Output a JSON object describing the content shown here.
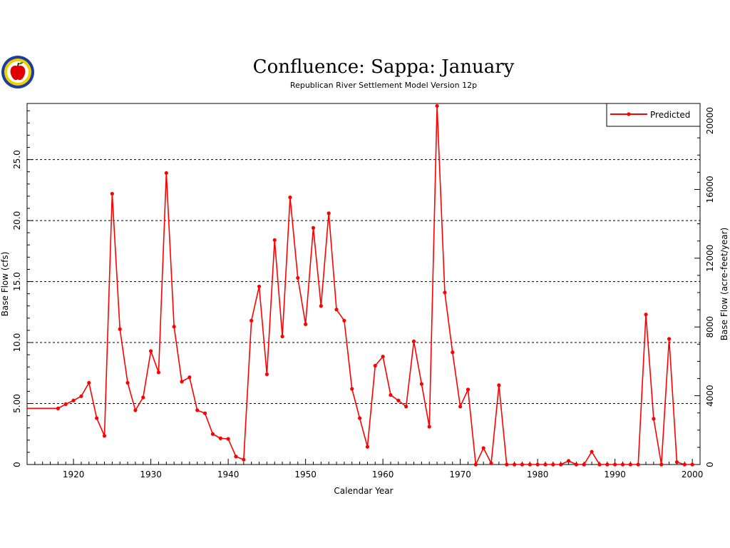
{
  "chart_data": {
    "type": "line",
    "title": "Confluence:  Sappa:  January",
    "subtitle": "Republican River Settlement Model Version 12p",
    "xlabel": "Calendar Year",
    "ylabel": "Base Flow (cfs)",
    "y2label": "Base Flow (acre-feet/year)",
    "xlim": [
      1914,
      2001
    ],
    "ylim": [
      0,
      29.6
    ],
    "y2lim": [
      0,
      21000
    ],
    "x_ticks": [
      1920,
      1930,
      1940,
      1950,
      1960,
      1970,
      1980,
      1990,
      2000
    ],
    "y_ticks": [
      0,
      5,
      10,
      15,
      20,
      25
    ],
    "y_tick_labels": [
      "0",
      "5.00",
      "10.0",
      "15.0",
      "20.0",
      "25.0"
    ],
    "y2_ticks": [
      0,
      4000,
      8000,
      12000,
      16000,
      20000
    ],
    "y2_tick_labels": [
      "0",
      "4000",
      "8000",
      "12000",
      "16000",
      "20000"
    ],
    "grid": "horizontal dashed",
    "legend_placement": "top-right",
    "series": [
      {
        "name": "Predicted",
        "color": "#ff0000",
        "start_x": 1914,
        "start_y": 4.6,
        "x": [
          1918,
          1919,
          1920,
          1921,
          1922,
          1923,
          1924,
          1925,
          1926,
          1927,
          1928,
          1929,
          1930,
          1931,
          1932,
          1933,
          1934,
          1935,
          1936,
          1937,
          1938,
          1939,
          1940,
          1941,
          1942,
          1943,
          1944,
          1945,
          1946,
          1947,
          1948,
          1949,
          1950,
          1951,
          1952,
          1953,
          1954,
          1955,
          1956,
          1957,
          1958,
          1959,
          1960,
          1961,
          1962,
          1963,
          1964,
          1965,
          1966,
          1967,
          1968,
          1969,
          1970,
          1971,
          1972,
          1973,
          1974,
          1975,
          1976,
          1977,
          1978,
          1979,
          1980,
          1981,
          1982,
          1983,
          1984,
          1985,
          1986,
          1987,
          1988,
          1989,
          1990,
          1991,
          1992,
          1993,
          1994,
          1995,
          1996,
          1997,
          1998,
          1999,
          2000
        ],
        "values": [
          4.6,
          4.95,
          5.25,
          5.6,
          6.7,
          3.8,
          2.35,
          22.2,
          11.1,
          6.7,
          4.45,
          5.5,
          9.3,
          7.55,
          23.9,
          11.3,
          6.8,
          7.15,
          4.45,
          4.2,
          2.5,
          2.15,
          2.1,
          0.65,
          0.4,
          11.8,
          14.6,
          7.4,
          18.4,
          10.5,
          21.9,
          15.3,
          11.5,
          19.4,
          13.0,
          20.6,
          12.7,
          11.8,
          6.2,
          3.8,
          1.45,
          8.1,
          8.85,
          5.7,
          5.25,
          4.75,
          10.1,
          6.6,
          3.1,
          29.4,
          14.1,
          9.2,
          4.75,
          6.15,
          0.0,
          1.35,
          0.1,
          6.5,
          0.0,
          0.0,
          0.0,
          0.0,
          0.0,
          0.0,
          0.0,
          0.0,
          0.3,
          0.0,
          0.0,
          1.05,
          0.0,
          0.0,
          0.0,
          0.0,
          0.0,
          0.0,
          12.3,
          3.75,
          0.0,
          10.3,
          0.2,
          0.0,
          0.0
        ]
      }
    ]
  }
}
